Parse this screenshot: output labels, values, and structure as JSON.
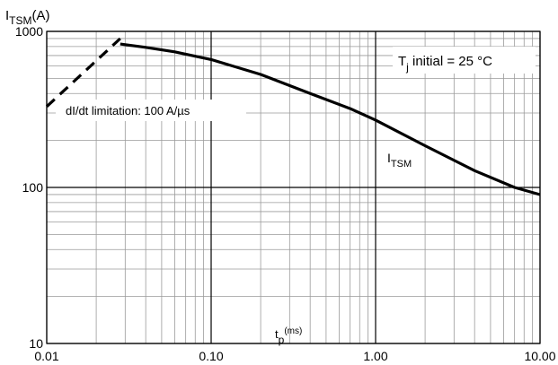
{
  "chart_data": {
    "type": "line",
    "title": "",
    "ylabel_main": "I",
    "ylabel_sub": "TSM",
    "ylabel_unit": "(A)",
    "xlabel_main": "t",
    "xlabel_sub": "p",
    "xlabel_unit": "(ms)",
    "x_scale": "log",
    "y_scale": "log",
    "xlim": [
      0.01,
      10.0
    ],
    "ylim": [
      10,
      1000
    ],
    "x_tick_labels": [
      "0.01",
      "0.10",
      "1.00",
      "10.00"
    ],
    "y_tick_labels": [
      "10",
      "100",
      "1000"
    ],
    "grid": true,
    "series": [
      {
        "name": "I",
        "name_sub": "TSM",
        "style": "solid",
        "x": [
          0.028,
          0.04,
          0.06,
          0.1,
          0.2,
          0.4,
          0.7,
          1.0,
          2.0,
          4.0,
          7.0,
          10.0
        ],
        "y": [
          830,
          790,
          740,
          660,
          530,
          400,
          320,
          270,
          185,
          128,
          100,
          90
        ]
      },
      {
        "name": "dI/dt limitation: 100 A/µs",
        "style": "dashed",
        "x": [
          0.01,
          0.028
        ],
        "y": [
          330,
          900
        ]
      }
    ],
    "annotations": {
      "tj_main": "T",
      "tj_sub": "j",
      "tj_rest": " initial = 25 °C",
      "didt": "dI/dt limitation: 100 A/µs"
    }
  }
}
